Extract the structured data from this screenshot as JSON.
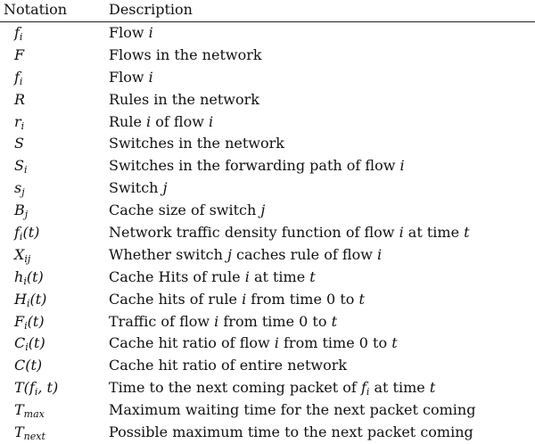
{
  "header": {
    "notation": "Notation",
    "description": "Description"
  },
  "rows": [
    {
      "symbol": "f",
      "sub": "i",
      "args": "",
      "description": "Flow i"
    },
    {
      "symbol": "F",
      "sub": "",
      "args": "",
      "description": "Flows in the network"
    },
    {
      "symbol": "f",
      "sub": "i",
      "args": "",
      "description": "Flow i"
    },
    {
      "symbol": "R",
      "sub": "",
      "args": "",
      "description": "Rules in the network"
    },
    {
      "symbol": "r",
      "sub": "i",
      "args": "",
      "description": "Rule i of flow i"
    },
    {
      "symbol": "S",
      "sub": "",
      "args": "",
      "description": "Switches in the network"
    },
    {
      "symbol": "S",
      "sub": "i",
      "args": "",
      "description": "Switches in the forwarding path of flow i"
    },
    {
      "symbol": "s",
      "sub": "j",
      "args": "",
      "description": "Switch j"
    },
    {
      "symbol": "B",
      "sub": "j",
      "args": "",
      "description": "Cache size of switch j"
    },
    {
      "symbol": "f",
      "sub": "i",
      "args": "(t)",
      "description": "Network traffic density function of flow i at time t"
    },
    {
      "symbol": "X",
      "sub": "ij",
      "args": "",
      "description": "Whether switch j caches rule of flow i"
    },
    {
      "symbol": "h",
      "sub": "i",
      "args": "(t)",
      "description": "Cache Hits of rule i at time t"
    },
    {
      "symbol": "H",
      "sub": "i",
      "args": "(t)",
      "description": "Cache hits of rule i from time 0 to t"
    },
    {
      "symbol": "F",
      "sub": "i",
      "args": "(t)",
      "description": "Traffic of flow i from time 0 to t"
    },
    {
      "symbol": "C",
      "sub": "i",
      "args": "(t)",
      "description": "Cache hit ratio of flow i from time 0 to t"
    },
    {
      "symbol": "C",
      "sub": "",
      "args": "(t)",
      "description": "Cache hit ratio of entire network"
    },
    {
      "symbol": "T",
      "sub": "",
      "args": "(f_i, t)",
      "description": "Time to the next coming packet of f_i at time t"
    },
    {
      "symbol": "T",
      "sub": "max",
      "args": "",
      "description": "Maximum waiting time for the next packet coming"
    },
    {
      "symbol": "T",
      "sub": "next",
      "args": "",
      "description": "Possible maximum time to the next packet coming"
    }
  ]
}
